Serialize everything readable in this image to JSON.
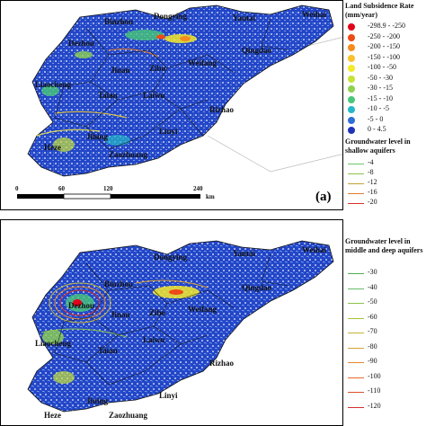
{
  "panel_a": {
    "tag": "(a)",
    "cities": [
      "Binzhou",
      "Dongying",
      "Yantai",
      "Weihai",
      "Dezhou",
      "Jinan",
      "Zibo",
      "Weifang",
      "Qingdao",
      "Liaocheng",
      "Taian",
      "Rizhao",
      "Laiwu",
      "Heze",
      "Jining",
      "Linyi",
      "Zaozhuang"
    ],
    "scale": {
      "ticks": [
        "0",
        "60",
        "120",
        "240"
      ],
      "unit": "km"
    }
  },
  "panel_b": {
    "cities": [
      "Binzhou",
      "Dongying",
      "Yantai",
      "Weihai",
      "Dezhou",
      "Jinan",
      "Zibo",
      "Weifang",
      "Qingdao",
      "Liaocheng",
      "Taian",
      "Rizhao",
      "Laiwu",
      "Heze",
      "Jining",
      "Linyi",
      "Zaozhuang"
    ]
  },
  "legend_subsidence": {
    "title": "Land Subsidence Rate",
    "unit": "(mm/year)",
    "items": [
      {
        "label": "-298.9 - -250",
        "color": "#e3001b"
      },
      {
        "label": "-250 - -200",
        "color": "#ee4a16"
      },
      {
        "label": "-200 - -150",
        "color": "#f68c1e"
      },
      {
        "label": "-150 - -100",
        "color": "#fbc02d"
      },
      {
        "label": "-100 - -50",
        "color": "#f4ea2a"
      },
      {
        "label": "-50 - -30",
        "color": "#c7e33a"
      },
      {
        "label": "-30 - -15",
        "color": "#8ed250"
      },
      {
        "label": "-15 - -10",
        "color": "#48c878"
      },
      {
        "label": "-10 - -5",
        "color": "#27b7c7"
      },
      {
        "label": "-5 - 0",
        "color": "#2f6fd6"
      },
      {
        "label": "0 - 4.5",
        "color": "#1f33b8"
      }
    ]
  },
  "legend_shallow": {
    "title": "Groundwater level in shallow aquifers",
    "items": [
      {
        "label": "-4",
        "color": "#6cc86a"
      },
      {
        "label": "-8",
        "color": "#8bc34a"
      },
      {
        "label": "-12",
        "color": "#c5a030"
      },
      {
        "label": "-16",
        "color": "#e07a2a"
      },
      {
        "label": "-20",
        "color": "#d73027"
      }
    ]
  },
  "legend_deep": {
    "title": "Groundwater level in middle and deep aquifers",
    "items": [
      {
        "label": "-30",
        "color": "#4caf50"
      },
      {
        "label": "-40",
        "color": "#66bb6a"
      },
      {
        "label": "-50",
        "color": "#8bc34a"
      },
      {
        "label": "-60",
        "color": "#a5c43c"
      },
      {
        "label": "-70",
        "color": "#c6b53a"
      },
      {
        "label": "-80",
        "color": "#d9a032"
      },
      {
        "label": "-90",
        "color": "#e6862e"
      },
      {
        "label": "-100",
        "color": "#e56b2c"
      },
      {
        "label": "-110",
        "color": "#dd4f2a"
      },
      {
        "label": "-120",
        "color": "#d32f2f"
      }
    ]
  }
}
